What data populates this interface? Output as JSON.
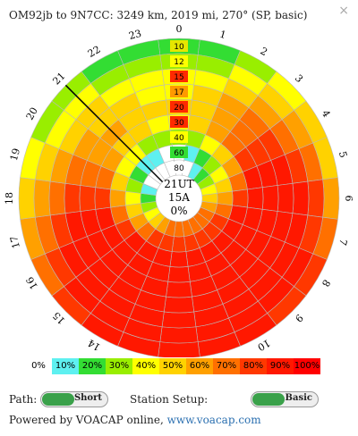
{
  "header": {
    "title": "OM92jb to 9N7CC: 3249 km, 2019 mi, 270°  (SP, basic)",
    "close_glyph": "×"
  },
  "chart": {
    "hour_labels": [
      "0",
      "1",
      "2",
      "3",
      "4",
      "5",
      "6",
      "7",
      "8",
      "9",
      "10",
      "11",
      "12",
      "13",
      "14",
      "15",
      "16",
      "17",
      "18",
      "19",
      "20",
      "21",
      "22",
      "23"
    ],
    "freq_labels": [
      "10",
      "12",
      "15",
      "17",
      "20",
      "30",
      "40",
      "60",
      "80"
    ],
    "freq_label_colors": [
      "#e6e600",
      "#ffff00",
      "#ff2a00",
      "#ff9900",
      "#ff2a00",
      "#ff2a00",
      "#ffff00",
      "#33dd33",
      "#ffffff"
    ],
    "center": {
      "time": "21UT",
      "sfi": "15A",
      "percent": "0%"
    },
    "palette": [
      "#ffffff",
      "#5ef0f0",
      "#33dd33",
      "#99ee00",
      "#ffff00",
      "#ffd200",
      "#ffa000",
      "#ff7000",
      "#ff3800",
      "#ff1800"
    ],
    "reliability_grid": [
      [
        2,
        2,
        3,
        4,
        5,
        5,
        6,
        7,
        8,
        8,
        9,
        9,
        9,
        9,
        9,
        8,
        7,
        6,
        5,
        4,
        3,
        3,
        2,
        2
      ],
      [
        3,
        3,
        4,
        5,
        6,
        7,
        8,
        8,
        9,
        9,
        9,
        9,
        9,
        9,
        9,
        9,
        8,
        7,
        6,
        5,
        4,
        4,
        3,
        3
      ],
      [
        4,
        4,
        5,
        6,
        7,
        8,
        9,
        9,
        9,
        9,
        9,
        9,
        9,
        9,
        9,
        9,
        9,
        8,
        7,
        6,
        5,
        5,
        4,
        4
      ],
      [
        4,
        5,
        6,
        7,
        8,
        9,
        9,
        9,
        9,
        9,
        9,
        9,
        9,
        9,
        9,
        9,
        9,
        9,
        8,
        7,
        6,
        5,
        5,
        4
      ],
      [
        5,
        5,
        6,
        7,
        8,
        9,
        9,
        9,
        9,
        9,
        9,
        9,
        9,
        9,
        9,
        9,
        9,
        9,
        8,
        7,
        6,
        6,
        5,
        5
      ],
      [
        4,
        5,
        6,
        7,
        8,
        9,
        9,
        9,
        9,
        9,
        9,
        9,
        9,
        9,
        9,
        9,
        9,
        9,
        8,
        7,
        6,
        5,
        5,
        4
      ],
      [
        3,
        3,
        4,
        5,
        6,
        7,
        8,
        9,
        9,
        9,
        9,
        9,
        9,
        9,
        9,
        9,
        8,
        7,
        6,
        5,
        4,
        4,
        3,
        3
      ],
      [
        0,
        1,
        2,
        3,
        4,
        5,
        6,
        7,
        8,
        8,
        8,
        8,
        8,
        8,
        8,
        7,
        6,
        5,
        4,
        3,
        2,
        1,
        1,
        0
      ],
      [
        0,
        0,
        1,
        2,
        3,
        4,
        5,
        6,
        7,
        7,
        7,
        7,
        7,
        7,
        6,
        5,
        4,
        3,
        2,
        1,
        0,
        0,
        0,
        0
      ]
    ],
    "current_hour_marker": "21"
  },
  "legend": [
    {
      "label": "0%",
      "color": "#ffffff"
    },
    {
      "label": "10%",
      "color": "#5ef0f0"
    },
    {
      "label": "20%",
      "color": "#33dd33"
    },
    {
      "label": "30%",
      "color": "#99ee00"
    },
    {
      "label": "40%",
      "color": "#ffff00"
    },
    {
      "label": "50%",
      "color": "#ffd200"
    },
    {
      "label": "60%",
      "color": "#ffa000"
    },
    {
      "label": "70%",
      "color": "#ff7000"
    },
    {
      "label": "80%",
      "color": "#ff3800"
    },
    {
      "label": "90%",
      "color": "#ff1800"
    },
    {
      "label": "100%",
      "color": "#ff0000"
    }
  ],
  "controls": {
    "path_label": "Path:",
    "path_value": "Short",
    "station_label": "Station Setup:",
    "station_value": "Basic"
  },
  "footer": {
    "text": "Powered by VOACAP online,",
    "link": "www.voacap.com"
  }
}
